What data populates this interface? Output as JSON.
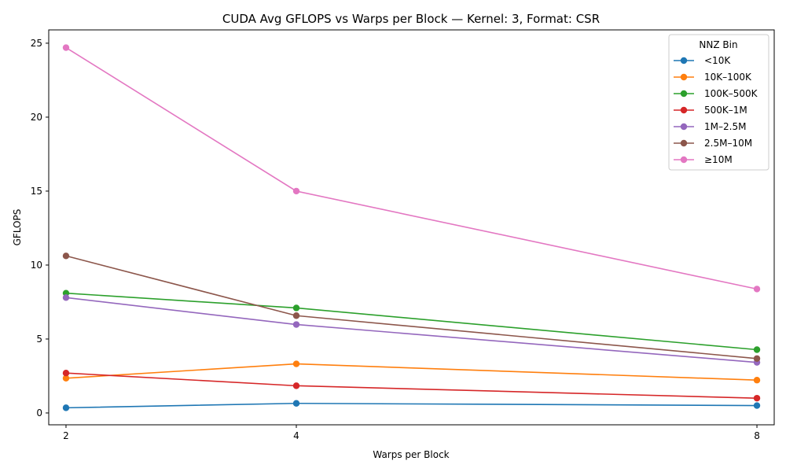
{
  "chart_data": {
    "type": "line",
    "title": "CUDA Avg GFLOPS vs Warps per Block — Kernel: 3, Format: CSR",
    "xlabel": "Warps per Block",
    "ylabel": "GFLOPS",
    "x": [
      2,
      4,
      8
    ],
    "x_tick_labels": [
      "2",
      "4",
      "8"
    ],
    "xlim": [
      1.85,
      8.15
    ],
    "ylim": [
      -0.8,
      25.9
    ],
    "y_ticks": [
      0,
      5,
      10,
      15,
      20,
      25
    ],
    "y_tick_labels": [
      "0",
      "5",
      "10",
      "15",
      "20",
      "25"
    ],
    "grid": false,
    "legend": {
      "title": "NNZ Bin",
      "placement": "top-right"
    },
    "series": [
      {
        "name": "<10K",
        "color": "#1f77b4",
        "values": [
          0.35,
          0.65,
          0.5
        ]
      },
      {
        "name": "10K–100K",
        "color": "#ff7f0e",
        "values": [
          2.35,
          3.32,
          2.22
        ]
      },
      {
        "name": "100K–500K",
        "color": "#2ca02c",
        "values": [
          8.1,
          7.1,
          4.28
        ]
      },
      {
        "name": "500K–1M",
        "color": "#d62728",
        "values": [
          2.7,
          1.84,
          1.0
        ]
      },
      {
        "name": "1M–2.5M",
        "color": "#9467bd",
        "values": [
          7.8,
          5.98,
          3.42
        ]
      },
      {
        "name": "2.5M–10M",
        "color": "#8c564b",
        "values": [
          10.62,
          6.58,
          3.68
        ]
      },
      {
        "name": "≥10M",
        "color": "#e377c2",
        "values": [
          24.7,
          15.0,
          8.38
        ]
      }
    ]
  }
}
